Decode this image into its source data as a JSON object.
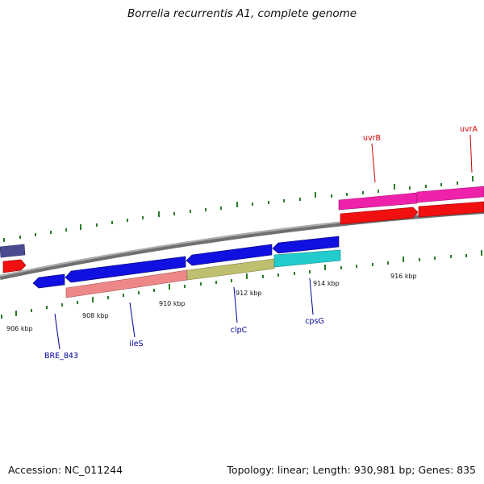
{
  "title": "Borrelia recurrentis A1, complete genome",
  "footer": {
    "accession": "Accession: NC_011244",
    "summary": "Topology: linear; Length: 930,981 bp; Genes: 835"
  },
  "colors": {
    "backbone": "#8c8c8c",
    "tick": "#2a7d2a",
    "gene_blue": "#1010e0",
    "gene_red": "#f01010",
    "gene_magenta": "#ee22aa",
    "gene_navy": "#4a4a90",
    "rna_salmon": "#ee8888",
    "rna_olive": "#bfbf70",
    "rna_cyan": "#22cccc",
    "label_forward": "#cc0000",
    "label_reverse": "#000099"
  },
  "scale_labels": [
    "906 kbp",
    "908 kbp",
    "910 kbp",
    "912 kbp",
    "914 kbp",
    "916 kbp"
  ],
  "gene_labels": {
    "forward": [
      "uvrB",
      "uvrA"
    ],
    "reverse": [
      "BRE_843",
      "ileS",
      "clpC",
      "cpsG"
    ]
  }
}
